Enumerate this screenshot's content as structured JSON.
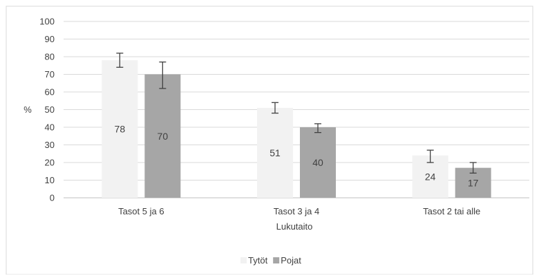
{
  "chart_data": {
    "type": "bar",
    "title": "",
    "xlabel": "Lukutaito",
    "ylabel": "%",
    "ylim": [
      0,
      100
    ],
    "yticks": [
      0,
      10,
      20,
      30,
      40,
      50,
      60,
      70,
      80,
      90,
      100
    ],
    "grid": true,
    "legend_position": "bottom",
    "categories": [
      "Tasot 5 ja 6",
      "Tasot 3 ja 4",
      "Tasot 2 tai alle"
    ],
    "series": [
      {
        "name": "Tytöt",
        "color": "#f2f2f2",
        "values": [
          78,
          51,
          24
        ],
        "error_low": [
          74,
          48,
          20
        ],
        "error_high": [
          82,
          54,
          27
        ]
      },
      {
        "name": "Pojat",
        "color": "#a6a6a6",
        "values": [
          70,
          40,
          17
        ],
        "error_low": [
          62,
          37,
          14
        ],
        "error_high": [
          77,
          42,
          20
        ]
      }
    ]
  }
}
